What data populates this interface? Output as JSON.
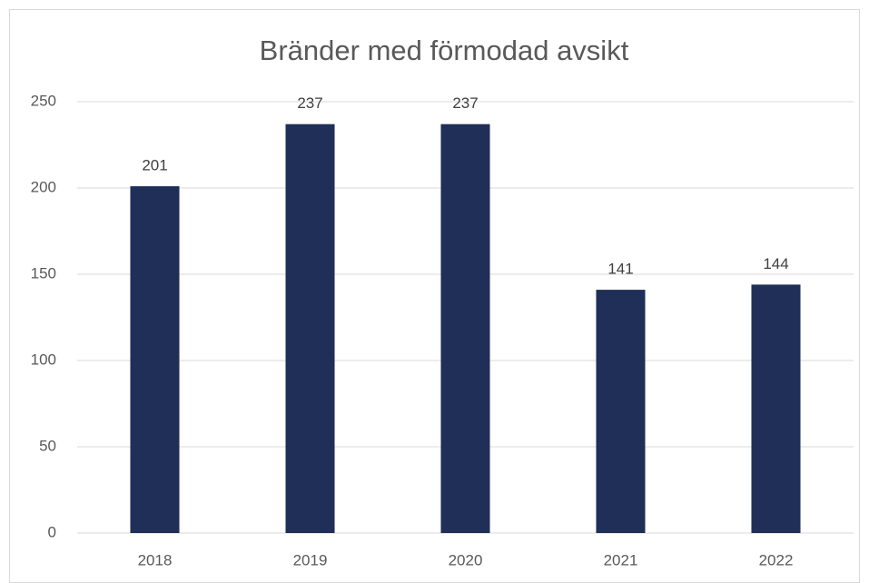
{
  "chart_data": {
    "type": "bar",
    "title": "Bränder med förmodad avsikt",
    "categories": [
      "2018",
      "2019",
      "2020",
      "2021",
      "2022"
    ],
    "values": [
      201,
      237,
      237,
      141,
      144
    ],
    "color": "#1f2f57",
    "ylim": [
      0,
      250
    ],
    "yticks": [
      0,
      50,
      100,
      150,
      200,
      250
    ],
    "grid": true
  }
}
